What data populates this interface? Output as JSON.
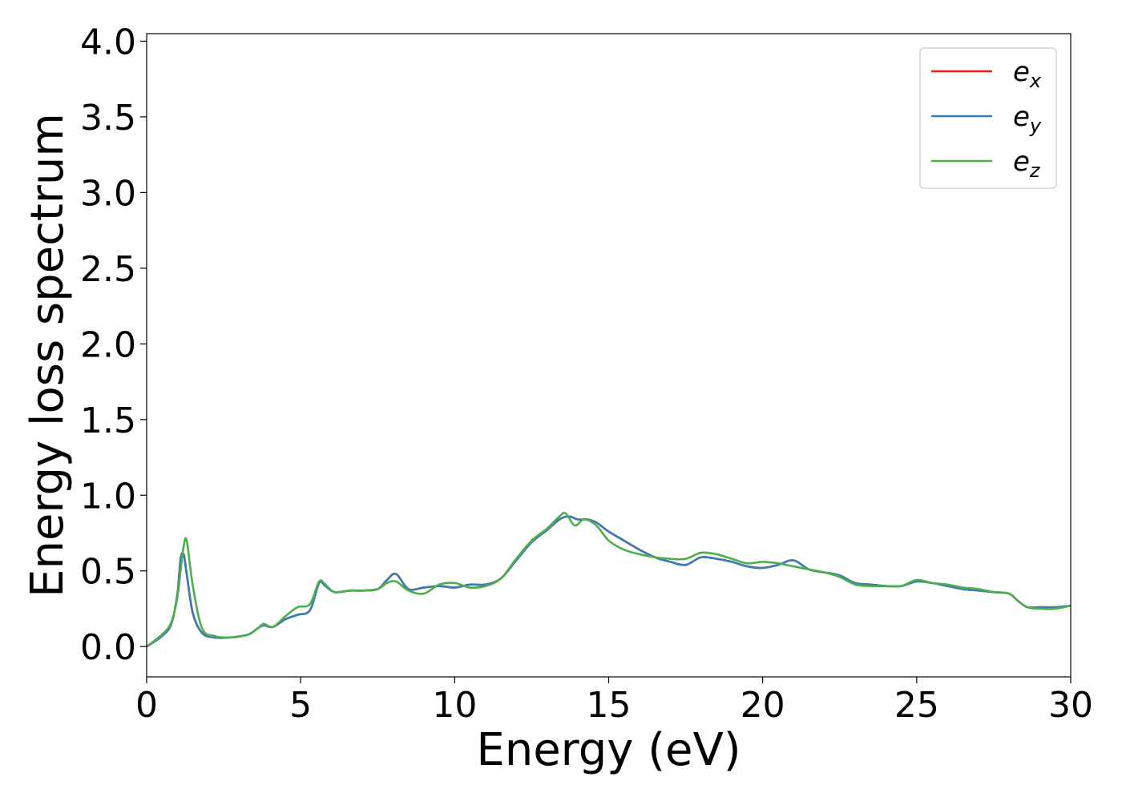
{
  "chart_data": {
    "type": "line",
    "title": "",
    "xlabel": "Energy (eV)",
    "ylabel": "Energy loss spectrum",
    "xlim": [
      0,
      30
    ],
    "ylim": [
      -0.2,
      4.05
    ],
    "xticks": [
      0,
      5,
      10,
      15,
      20,
      25,
      30
    ],
    "xtick_labels": [
      "0",
      "5",
      "10",
      "15",
      "20",
      "25",
      "30"
    ],
    "yticks": [
      0.0,
      0.5,
      1.0,
      1.5,
      2.0,
      2.5,
      3.0,
      3.5,
      4.0
    ],
    "ytick_labels": [
      "0.0",
      "0.5",
      "1.0",
      "1.5",
      "2.0",
      "2.5",
      "3.0",
      "3.5",
      "4.0"
    ],
    "grid": false,
    "legend_position": "top-right",
    "series": [
      {
        "name": "e_x",
        "legend_base": "e",
        "legend_sub": "x",
        "color": "#e41a1c",
        "x": [
          0,
          0.5,
          0.8,
          1.0,
          1.1,
          1.2,
          1.3,
          1.5,
          1.8,
          2.2,
          2.7,
          3.3,
          3.6,
          3.8,
          4.1,
          4.5,
          4.9,
          5.3,
          5.6,
          5.8,
          6.1,
          6.6,
          7.0,
          7.5,
          7.8,
          8.1,
          8.5,
          9.0,
          9.5,
          10.0,
          10.5,
          11.0,
          11.5,
          12.0,
          12.5,
          13.0,
          13.4,
          13.7,
          14.0,
          14.3,
          14.6,
          15.0,
          15.5,
          16.0,
          16.5,
          17.0,
          17.5,
          18.0,
          18.5,
          19.0,
          19.5,
          20.0,
          20.5,
          21.0,
          21.5,
          22.0,
          22.5,
          23.0,
          23.5,
          24.0,
          24.5,
          25.0,
          25.5,
          26.0,
          26.5,
          27.0,
          27.5,
          28.0,
          28.3,
          28.6,
          29.0,
          29.5,
          30.0
        ],
        "y": [
          0.0,
          0.07,
          0.15,
          0.35,
          0.58,
          0.61,
          0.48,
          0.22,
          0.09,
          0.06,
          0.06,
          0.08,
          0.12,
          0.14,
          0.13,
          0.18,
          0.21,
          0.24,
          0.42,
          0.4,
          0.36,
          0.37,
          0.37,
          0.38,
          0.44,
          0.48,
          0.38,
          0.39,
          0.4,
          0.39,
          0.41,
          0.41,
          0.45,
          0.57,
          0.69,
          0.77,
          0.84,
          0.86,
          0.84,
          0.84,
          0.82,
          0.76,
          0.7,
          0.64,
          0.59,
          0.56,
          0.54,
          0.59,
          0.58,
          0.56,
          0.53,
          0.52,
          0.54,
          0.57,
          0.51,
          0.49,
          0.47,
          0.42,
          0.41,
          0.4,
          0.4,
          0.43,
          0.42,
          0.4,
          0.38,
          0.37,
          0.36,
          0.35,
          0.3,
          0.26,
          0.26,
          0.26,
          0.27
        ]
      },
      {
        "name": "e_y",
        "legend_base": "e",
        "legend_sub": "y",
        "color": "#377eb8",
        "x": [
          0,
          0.5,
          0.8,
          1.0,
          1.1,
          1.2,
          1.3,
          1.5,
          1.8,
          2.2,
          2.7,
          3.3,
          3.6,
          3.8,
          4.1,
          4.5,
          4.9,
          5.3,
          5.6,
          5.8,
          6.1,
          6.6,
          7.0,
          7.5,
          7.8,
          8.1,
          8.5,
          9.0,
          9.5,
          10.0,
          10.5,
          11.0,
          11.5,
          12.0,
          12.5,
          13.0,
          13.4,
          13.7,
          14.0,
          14.3,
          14.6,
          15.0,
          15.5,
          16.0,
          16.5,
          17.0,
          17.5,
          18.0,
          18.5,
          19.0,
          19.5,
          20.0,
          20.5,
          21.0,
          21.5,
          22.0,
          22.5,
          23.0,
          23.5,
          24.0,
          24.5,
          25.0,
          25.5,
          26.0,
          26.5,
          27.0,
          27.5,
          28.0,
          28.3,
          28.6,
          29.0,
          29.5,
          30.0
        ],
        "y": [
          0.0,
          0.07,
          0.15,
          0.35,
          0.58,
          0.61,
          0.48,
          0.22,
          0.09,
          0.06,
          0.06,
          0.08,
          0.12,
          0.14,
          0.13,
          0.18,
          0.21,
          0.24,
          0.42,
          0.4,
          0.36,
          0.37,
          0.37,
          0.38,
          0.44,
          0.48,
          0.38,
          0.39,
          0.4,
          0.39,
          0.41,
          0.41,
          0.45,
          0.57,
          0.69,
          0.77,
          0.84,
          0.86,
          0.84,
          0.84,
          0.82,
          0.76,
          0.7,
          0.64,
          0.59,
          0.56,
          0.54,
          0.59,
          0.58,
          0.56,
          0.53,
          0.52,
          0.54,
          0.57,
          0.51,
          0.49,
          0.47,
          0.42,
          0.41,
          0.4,
          0.4,
          0.43,
          0.42,
          0.4,
          0.38,
          0.37,
          0.36,
          0.35,
          0.3,
          0.26,
          0.26,
          0.26,
          0.27
        ]
      },
      {
        "name": "e_z",
        "legend_base": "e",
        "legend_sub": "z",
        "color": "#4daf4a",
        "x": [
          0,
          0.5,
          0.8,
          1.0,
          1.1,
          1.2,
          1.3,
          1.5,
          1.8,
          2.2,
          2.7,
          3.3,
          3.6,
          3.8,
          4.1,
          4.5,
          4.9,
          5.3,
          5.6,
          5.8,
          6.1,
          6.6,
          7.0,
          7.5,
          7.8,
          8.1,
          8.5,
          9.0,
          9.5,
          10.0,
          10.5,
          11.0,
          11.5,
          12.0,
          12.5,
          13.0,
          13.4,
          13.6,
          13.9,
          14.2,
          14.6,
          15.0,
          15.5,
          16.0,
          16.5,
          17.0,
          17.5,
          18.0,
          18.5,
          19.0,
          19.5,
          20.0,
          20.5,
          21.0,
          21.5,
          22.0,
          22.5,
          23.0,
          23.5,
          24.0,
          24.5,
          25.0,
          25.5,
          26.0,
          26.5,
          27.0,
          27.5,
          28.0,
          28.3,
          28.6,
          29.0,
          29.5,
          30.0
        ],
        "y": [
          0.0,
          0.08,
          0.16,
          0.33,
          0.5,
          0.66,
          0.7,
          0.4,
          0.12,
          0.07,
          0.06,
          0.08,
          0.12,
          0.15,
          0.13,
          0.2,
          0.26,
          0.28,
          0.43,
          0.41,
          0.36,
          0.37,
          0.37,
          0.38,
          0.42,
          0.43,
          0.37,
          0.35,
          0.41,
          0.42,
          0.39,
          0.4,
          0.45,
          0.58,
          0.7,
          0.78,
          0.86,
          0.88,
          0.8,
          0.84,
          0.8,
          0.7,
          0.64,
          0.61,
          0.59,
          0.58,
          0.58,
          0.62,
          0.61,
          0.58,
          0.55,
          0.56,
          0.55,
          0.53,
          0.51,
          0.49,
          0.46,
          0.41,
          0.4,
          0.4,
          0.4,
          0.44,
          0.42,
          0.41,
          0.39,
          0.38,
          0.36,
          0.35,
          0.3,
          0.26,
          0.25,
          0.25,
          0.27
        ]
      }
    ]
  }
}
